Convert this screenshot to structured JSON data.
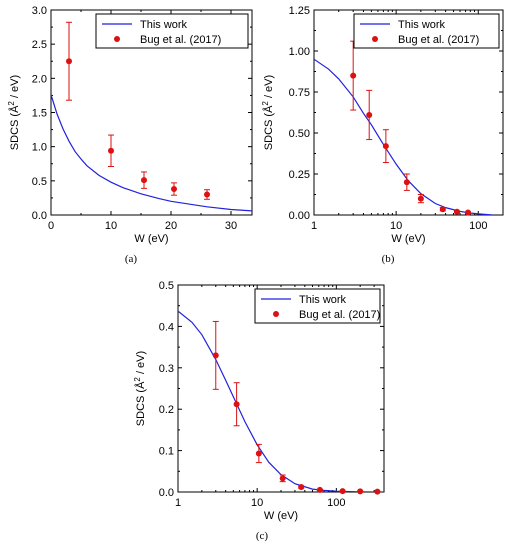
{
  "chart_data": [
    {
      "type": "scatter",
      "panel_label": "(a)",
      "xlabel": "W (eV)",
      "ylabel_main": "SDCS (Å",
      "ylabel_sup": "2",
      "ylabel_tail": " / eV)",
      "xscale": "linear",
      "xlim": [
        0,
        33.5
      ],
      "ylim": [
        0,
        3.0
      ],
      "xticks": [
        0,
        10,
        20,
        30
      ],
      "xtick_labels": [
        "0",
        "10",
        "20",
        "30"
      ],
      "yticks": [
        0,
        0.5,
        1.0,
        1.5,
        2.0,
        2.5,
        3.0
      ],
      "ytick_labels": [
        "0.0",
        "0.5",
        "1.0",
        "1.5",
        "2.0",
        "2.5",
        "3.0"
      ],
      "legend_position": "top-right",
      "grid": false,
      "series": [
        {
          "name": "This work",
          "kind": "line",
          "color": "#2222dd",
          "x": [
            0,
            1,
            2,
            3,
            4,
            5,
            6,
            8,
            10,
            12,
            15,
            18,
            20,
            23,
            26,
            30,
            33.5
          ],
          "y": [
            1.76,
            1.48,
            1.26,
            1.08,
            0.93,
            0.82,
            0.72,
            0.58,
            0.48,
            0.4,
            0.31,
            0.24,
            0.2,
            0.16,
            0.12,
            0.08,
            0.06
          ]
        },
        {
          "name": "Bug et al. (2017)",
          "kind": "points",
          "color": "#dd1111",
          "x": [
            3,
            10,
            15.5,
            20.5,
            26
          ],
          "y": [
            2.25,
            0.94,
            0.51,
            0.38,
            0.3
          ],
          "err": [
            0.57,
            0.23,
            0.12,
            0.09,
            0.07
          ]
        }
      ]
    },
    {
      "type": "scatter",
      "panel_label": "(b)",
      "xlabel": "W (eV)",
      "ylabel_main": "SDCS (Å",
      "ylabel_sup": "2",
      "ylabel_tail": " / eV)",
      "xscale": "log",
      "xlim": [
        1,
        200
      ],
      "ylim": [
        0,
        1.25
      ],
      "xticks": [
        1,
        10,
        100
      ],
      "xtick_labels": [
        "1",
        "10",
        "100"
      ],
      "yticks": [
        0,
        0.25,
        0.5,
        0.75,
        1.0,
        1.25
      ],
      "ytick_labels": [
        "0.00",
        "0.25",
        "0.50",
        "0.75",
        "1.00",
        "1.25"
      ],
      "legend_position": "top-right",
      "grid": false,
      "series": [
        {
          "name": "This work",
          "kind": "line",
          "color": "#2222dd",
          "x": [
            1,
            1.5,
            2,
            3,
            4,
            5,
            7,
            10,
            14,
            20,
            30,
            40,
            60,
            80,
            100,
            150
          ],
          "y": [
            0.95,
            0.89,
            0.83,
            0.72,
            0.62,
            0.55,
            0.43,
            0.31,
            0.21,
            0.13,
            0.07,
            0.045,
            0.022,
            0.012,
            0.007,
            0.0
          ]
        },
        {
          "name": "Bug et al. (2017)",
          "kind": "points",
          "color": "#dd1111",
          "x": [
            3,
            4.7,
            7.5,
            13.5,
            20,
            37,
            55,
            75
          ],
          "y": [
            0.85,
            0.61,
            0.42,
            0.2,
            0.1,
            0.035,
            0.02,
            0.015
          ],
          "err": [
            0.21,
            0.15,
            0.1,
            0.05,
            0.025,
            0.01,
            0.005,
            0.004
          ]
        }
      ]
    },
    {
      "type": "scatter",
      "panel_label": "(c)",
      "xlabel": "W (eV)",
      "ylabel_main": "SDCS (Å",
      "ylabel_sup": "2",
      "ylabel_tail": " / eV)",
      "xscale": "log",
      "xlim": [
        1,
        400
      ],
      "ylim": [
        0,
        0.5
      ],
      "xticks": [
        1,
        10,
        100
      ],
      "xtick_labels": [
        "1",
        "10",
        "100"
      ],
      "yticks": [
        0,
        0.1,
        0.2,
        0.3,
        0.4,
        0.5
      ],
      "ytick_labels": [
        "0.0",
        "0.1",
        "0.2",
        "0.3",
        "0.4",
        "0.5"
      ],
      "legend_position": "top-right",
      "grid": false,
      "series": [
        {
          "name": "This work",
          "kind": "line",
          "color": "#2222dd",
          "x": [
            1,
            1.5,
            2,
            3,
            4,
            5,
            7,
            10,
            14,
            20,
            30,
            50,
            70,
            100,
            150,
            200,
            300,
            400
          ],
          "y": [
            0.437,
            0.41,
            0.38,
            0.32,
            0.27,
            0.23,
            0.17,
            0.114,
            0.072,
            0.042,
            0.02,
            0.007,
            0.004,
            0.002,
            0.001,
            0.0005,
            0.0002,
            0.0
          ]
        },
        {
          "name": "Bug et al. (2017)",
          "kind": "points",
          "color": "#dd1111",
          "x": [
            3,
            5.5,
            10.5,
            21,
            36,
            62,
            120,
            200,
            330
          ],
          "y": [
            0.33,
            0.212,
            0.093,
            0.033,
            0.012,
            0.005,
            0.002,
            0.0015,
            0.001
          ],
          "err": [
            0.082,
            0.052,
            0.022,
            0.008,
            0.003,
            0.001,
            0.0005,
            0.0004,
            0.0003
          ]
        }
      ]
    }
  ]
}
